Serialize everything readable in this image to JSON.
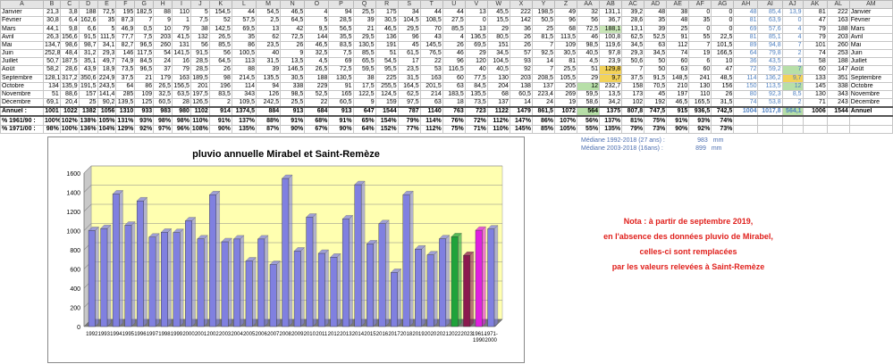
{
  "sheet": {
    "col_headers": [
      "A",
      "B",
      "C",
      "D",
      "E",
      "F",
      "G",
      "H",
      "I",
      "J",
      "K",
      "L",
      "M",
      "N",
      "O",
      "P",
      "Q",
      "R",
      "S",
      "T",
      "U",
      "V",
      "W",
      "X",
      "Y",
      "Z",
      "AA",
      "AB",
      "AC",
      "AD",
      "AE",
      "AF",
      "AG",
      "AH",
      "AI",
      "AJ",
      "AK",
      "AL",
      "AM"
    ],
    "rows": [
      [
        "Janvier",
        "21,3",
        "3,8",
        "188",
        "72,5",
        "195",
        "182,5",
        "88",
        "110",
        "5",
        "154,5",
        "44",
        "54,5",
        "46,5",
        "4",
        "94",
        "25,5",
        "175",
        "34",
        "44",
        "44",
        "13",
        "45,5",
        "222",
        "198,5",
        "49",
        "32",
        "131,1",
        "39,2",
        "48",
        "38",
        "0",
        "0",
        "48",
        "85,4",
        "13,9",
        "81",
        "222",
        "Janvier"
      ],
      [
        "Février",
        "30,8",
        "6,4",
        "162,6",
        "35",
        "87,3",
        "7",
        "9",
        "1",
        "7,5",
        "52",
        "57,5",
        "2,5",
        "64,5",
        "5",
        "28,5",
        "39",
        "30,5",
        "104,5",
        "108,5",
        "27,5",
        "0",
        "15,5",
        "142",
        "50,5",
        "96",
        "56",
        "36,7",
        "28,6",
        "35",
        "48",
        "35",
        "0",
        "81",
        "63,9",
        "0",
        "47",
        "163",
        "Février"
      ],
      [
        "Mars",
        "44,1",
        "9,8",
        "6,6",
        "5",
        "46,9",
        "0,5",
        "10",
        "79",
        "38",
        "142,5",
        "69,5",
        "13",
        "42",
        "9,5",
        "56,5",
        "21",
        "46,5",
        "29,5",
        "70",
        "85,5",
        "13",
        "29",
        "36",
        "25",
        "68",
        "72,5",
        "188,1",
        "13,1",
        "39",
        "25",
        "0",
        "0",
        "69",
        "57,6",
        "4",
        "79",
        "188",
        "Mars"
      ],
      [
        "Avril",
        "26,3",
        "156,6",
        "91,5",
        "111,5",
        "77,7",
        "7,5",
        "203",
        "41,5",
        "132",
        "26,5",
        "35",
        "62",
        "72,5",
        "144",
        "35,5",
        "29,5",
        "136",
        "96",
        "43",
        "4",
        "136,5",
        "80,5",
        "26",
        "81,5",
        "113,5",
        "46",
        "100,8",
        "62,5",
        "52,5",
        "91",
        "55",
        "22,5",
        "81",
        "85,1",
        "4",
        "79",
        "203",
        "Avril"
      ],
      [
        "Mai",
        "134,7",
        "98,6",
        "98,7",
        "34,1",
        "82,7",
        "96,5",
        "260",
        "131",
        "56",
        "85,5",
        "86",
        "23,5",
        "26",
        "46,5",
        "83,5",
        "130,5",
        "191",
        "45",
        "145,5",
        "26",
        "69,5",
        "151",
        "26",
        "7",
        "109",
        "98,5",
        "119,6",
        "34,5",
        "63",
        "112",
        "7",
        "101,5",
        "89",
        "94,8",
        "7",
        "101",
        "260",
        "Mai"
      ],
      [
        "Juin",
        "252,8",
        "48,4",
        "31,2",
        "29,3",
        "146",
        "117,5",
        "54",
        "141,5",
        "91,5",
        "56",
        "100,5",
        "40",
        "9",
        "32,5",
        "7,5",
        "85,5",
        "51",
        "61,5",
        "76,5",
        "46",
        "29",
        "34,5",
        "57",
        "92,5",
        "30,5",
        "40,5",
        "97,8",
        "29,3",
        "34,5",
        "74",
        "19",
        "166,5",
        "64",
        "79,8",
        "2",
        "74",
        "253",
        "Juin"
      ],
      [
        "Juillet",
        "50,7",
        "187,5",
        "35,1",
        "49,7",
        "74,9",
        "84,5",
        "24",
        "16",
        "28,5",
        "64,5",
        "113",
        "31,5",
        "13,5",
        "4,5",
        "69",
        "65,5",
        "54,5",
        "17",
        "22",
        "96",
        "120",
        "104,5",
        "93",
        "14",
        "81",
        "4,5",
        "23,9",
        "50,6",
        "50",
        "60",
        "6",
        "10",
        "36",
        "43,5",
        "4",
        "58",
        "188",
        "Juillet"
      ],
      [
        "Août",
        "58,2",
        "28,6",
        "43,9",
        "18,9",
        "73,5",
        "96,5",
        "37",
        "79",
        "28,5",
        "26",
        "88",
        "39",
        "146,5",
        "26,5",
        "72,5",
        "59,5",
        "95,5",
        "23,5",
        "53",
        "116,5",
        "40",
        "40,5",
        "92",
        "7",
        "25,5",
        "51",
        "129,8",
        "7",
        "50",
        "63",
        "60",
        "47",
        "72",
        "59,2",
        "7",
        "60",
        "147",
        "Août"
      ],
      [
        "Septembre",
        "128,1",
        "317,2",
        "350,6",
        "224,9",
        "37,5",
        "21",
        "179",
        "163",
        "189,5",
        "98",
        "214,5",
        "135,5",
        "30,5",
        "188",
        "130,5",
        "38",
        "225",
        "31,5",
        "163",
        "60",
        "77,5",
        "130",
        "203",
        "208,5",
        "105,5",
        "29",
        "9,7",
        "37,5",
        "91,5",
        "148,5",
        "241",
        "48,5",
        "114",
        "136,2",
        "9,7",
        "133",
        "351",
        "Septembre"
      ],
      [
        "Octobre",
        "134",
        "135,9",
        "191,5",
        "243,5",
        "64",
        "86",
        "26,5",
        "156,5",
        "201",
        "196",
        "114",
        "94",
        "338",
        "229",
        "91",
        "17,5",
        "255,5",
        "164,5",
        "201,5",
        "63",
        "84,5",
        "204",
        "138",
        "137",
        "205",
        "12",
        "232,7",
        "158",
        "70,5",
        "210",
        "130",
        "156",
        "150",
        "113,5",
        "12",
        "145",
        "338",
        "Octobre"
      ],
      [
        "Novembre",
        "51",
        "88,6",
        "157",
        "141,4",
        "285",
        "109",
        "32,5",
        "63,5",
        "197,5",
        "83,5",
        "343",
        "126",
        "98,5",
        "52,5",
        "165",
        "122,5",
        "124,5",
        "62,5",
        "214",
        "183,5",
        "135,5",
        "68",
        "60,5",
        "223,4",
        "269",
        "59,5",
        "13,5",
        "173",
        "45",
        "197",
        "110",
        "26",
        "80",
        "92,3",
        "8,5",
        "130",
        "343",
        "Novembre"
      ],
      [
        "Décembre",
        "69,1",
        "20,4",
        "25",
        "90,2",
        "139,5",
        "125",
        "60,5",
        "28",
        "126,5",
        "2",
        "109,5",
        "242,5",
        "25,5",
        "22",
        "60,5",
        "9",
        "159",
        "97,5",
        "63",
        "18",
        "73,5",
        "137",
        "14",
        "24",
        "19",
        "58,6",
        "34,2",
        "102",
        "192",
        "46,5",
        "165,5",
        "31,5",
        "74",
        "53,8",
        "2",
        "71",
        "243",
        "Décembre"
      ]
    ],
    "annuel": [
      "Annuel :",
      "1001",
      "1022",
      "1382",
      "1056",
      "1310",
      "933",
      "983",
      "980",
      "1102",
      "914",
      "1374,5",
      "884",
      "913",
      "684",
      "913",
      "647",
      "1544",
      "787",
      "1140",
      "763",
      "723",
      "1122",
      "1479",
      "861,5",
      "1072",
      "564",
      "1375",
      "807,8",
      "747,5",
      "915",
      "936,5",
      "742,5",
      "1004",
      "1017,8",
      "564,1",
      "1006",
      "1544",
      "Annuel"
    ],
    "pct_1961": [
      "% 1961/90 :",
      "100%",
      "102%",
      "138%",
      "105%",
      "131%",
      "93%",
      "98%",
      "98%",
      "110%",
      "91%",
      "137%",
      "88%",
      "91%",
      "68%",
      "91%",
      "65%",
      "154%",
      "79%",
      "114%",
      "76%",
      "72%",
      "112%",
      "147%",
      "86%",
      "107%",
      "56%",
      "137%",
      "81%",
      "75%",
      "91%",
      "93%",
      "74%",
      "",
      "",
      "",
      "",
      "",
      ""
    ],
    "pct_1971": [
      "% 1971/00 :",
      "98%",
      "100%",
      "136%",
      "104%",
      "129%",
      "92%",
      "97%",
      "96%",
      "108%",
      "90%",
      "135%",
      "87%",
      "90%",
      "67%",
      "90%",
      "64%",
      "152%",
      "77%",
      "112%",
      "75%",
      "71%",
      "110%",
      "145%",
      "85%",
      "105%",
      "55%",
      "135%",
      "79%",
      "73%",
      "90%",
      "92%",
      "73%",
      "",
      "",
      "",
      "",
      "",
      ""
    ]
  },
  "median": [
    {
      "label": "Médiane 1992-2018 (27 ans) :",
      "value": "983",
      "unit": "mm"
    },
    {
      "label": "Médiane 2003-2018 (16ans) :",
      "value": "899",
      "unit": "mm"
    }
  ],
  "nota": [
    "Nota : à partir de septembre 2019,",
    "en l'absence des données pluvio de Mirabel,",
    "celles-ci sont remplacées",
    "par les valeurs relevées à Saint-Remèze"
  ],
  "colors": {
    "bar": "#8080e0",
    "bar2022": "#1fa33a",
    "bar2023": "#8b1a4f",
    "bar1961": "#e020e0",
    "bar1971": "#8080e0",
    "plotbg": "#ffffb0",
    "floor": "#7a7a7a"
  },
  "chart_data": {
    "type": "bar",
    "title": "pluvio annuelle Mirabel et Saint-Remèze",
    "categories": [
      "1992",
      "1993",
      "1994",
      "1995",
      "1996",
      "1997",
      "1998",
      "1999",
      "2000",
      "2001",
      "2002",
      "2003",
      "2004",
      "2005",
      "2006",
      "2007",
      "2008",
      "2009",
      "2010",
      "2011",
      "2012",
      "2013",
      "2014",
      "2015",
      "2016",
      "2017",
      "2018",
      "2019",
      "2020",
      "2021",
      "2022",
      "2023",
      "1961-1990",
      "1971-2000"
    ],
    "values": [
      1001,
      1022,
      1382,
      1056,
      1310,
      933,
      983,
      980,
      1102,
      914,
      1374.5,
      884,
      913,
      684,
      913,
      647,
      1544,
      787,
      1140,
      763,
      723,
      1122,
      1479,
      861.5,
      1072,
      564,
      1375,
      807.8,
      747.5,
      915,
      936.5,
      742.5,
      1004,
      1017.8
    ],
    "ylim": [
      0,
      1600
    ],
    "yticks": [
      "0",
      "200",
      "400",
      "600",
      "800",
      "1000",
      "1200",
      "1400",
      "1600"
    ],
    "grid": true
  }
}
